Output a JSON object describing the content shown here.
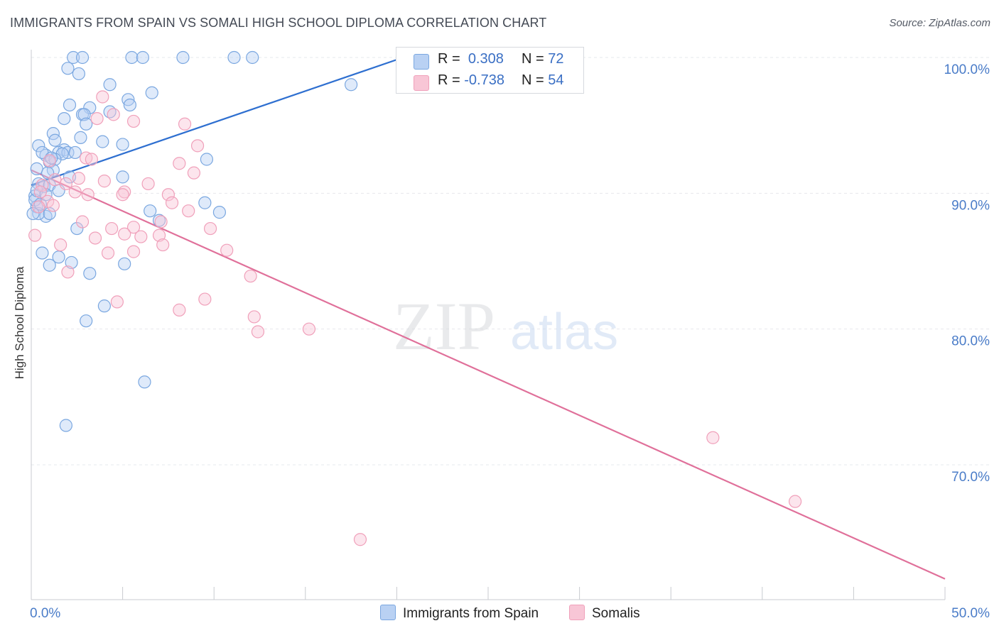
{
  "title": "IMMIGRANTS FROM SPAIN VS SOMALI HIGH SCHOOL DIPLOMA CORRELATION CHART",
  "source": "Source: ZipAtlas.com",
  "watermark": {
    "zip": "ZIP",
    "atlas": "atlas"
  },
  "colors": {
    "blue": "#7aa7e0",
    "blue_line": "#2e6fd0",
    "blue_fill": "#b9d1f3",
    "pink": "#f0a0ba",
    "pink_line": "#e0709a",
    "pink_fill": "#f8c6d6",
    "tick_text": "#4a7cc8",
    "grid": "#e6e8ec"
  },
  "legend": {
    "rows": [
      {
        "r_label": "R =",
        "r_value": "0.308",
        "n_label": "N =",
        "n_value": "72"
      },
      {
        "r_label": "R =",
        "r_value": "-0.738",
        "n_label": "N =",
        "n_value": "54"
      }
    ]
  },
  "chart_data": {
    "type": "scatter",
    "xlabel": "",
    "ylabel": "High School Diploma",
    "xlim": [
      0,
      50
    ],
    "ylim": [
      61.5,
      102
    ],
    "x_tick_labels": [
      "0.0%",
      "50.0%"
    ],
    "y_ticks": [
      70,
      80,
      90,
      100
    ],
    "y_tick_labels": [
      "70.0%",
      "80.0%",
      "90.0%",
      "100.0%"
    ],
    "grid": true,
    "legend_position": "top-center",
    "series": [
      {
        "name": "Immigrants from Spain",
        "color": "blue",
        "trend": {
          "x": [
            0,
            21
          ],
          "y": [
            90.6,
            100.3
          ]
        },
        "points": [
          [
            2.3,
            100
          ],
          [
            2.8,
            100
          ],
          [
            5.5,
            100
          ],
          [
            6.1,
            100
          ],
          [
            8.3,
            100
          ],
          [
            11.1,
            100
          ],
          [
            12.1,
            100
          ],
          [
            2.0,
            99.2
          ],
          [
            2.6,
            98.8
          ],
          [
            4.3,
            98.0
          ],
          [
            17.5,
            98.0
          ],
          [
            6.6,
            97.4
          ],
          [
            2.1,
            96.5
          ],
          [
            5.3,
            96.9
          ],
          [
            5.4,
            96.5
          ],
          [
            3.2,
            96.3
          ],
          [
            4.3,
            96.0
          ],
          [
            2.8,
            95.8
          ],
          [
            2.9,
            95.8
          ],
          [
            1.8,
            95.5
          ],
          [
            3.0,
            95.1
          ],
          [
            1.2,
            94.4
          ],
          [
            2.7,
            94.1
          ],
          [
            1.3,
            93.9
          ],
          [
            3.9,
            93.8
          ],
          [
            5.0,
            93.6
          ],
          [
            0.4,
            93.5
          ],
          [
            1.8,
            93.2
          ],
          [
            1.5,
            93.0
          ],
          [
            2.0,
            93.0
          ],
          [
            0.8,
            92.8
          ],
          [
            1.7,
            92.9
          ],
          [
            9.6,
            92.5
          ],
          [
            1.0,
            92.3
          ],
          [
            1.3,
            92.5
          ],
          [
            0.3,
            91.8
          ],
          [
            1.2,
            91.7
          ],
          [
            5.0,
            91.2
          ],
          [
            2.1,
            91.2
          ],
          [
            0.4,
            90.7
          ],
          [
            0.7,
            90.5
          ],
          [
            1.0,
            90.6
          ],
          [
            0.2,
            89.8
          ],
          [
            1.5,
            90.2
          ],
          [
            9.5,
            89.3
          ],
          [
            0.3,
            89.0
          ],
          [
            6.5,
            88.7
          ],
          [
            10.3,
            88.6
          ],
          [
            0.8,
            88.3
          ],
          [
            0.4,
            88.5
          ],
          [
            1.0,
            88.5
          ],
          [
            0.1,
            88.5
          ],
          [
            7.0,
            88.0
          ],
          [
            2.5,
            87.4
          ],
          [
            0.6,
            85.6
          ],
          [
            1.5,
            85.3
          ],
          [
            5.1,
            84.8
          ],
          [
            1.0,
            84.7
          ],
          [
            2.2,
            84.9
          ],
          [
            3.2,
            84.1
          ],
          [
            4.0,
            81.7
          ],
          [
            3.0,
            80.6
          ],
          [
            6.2,
            76.1
          ],
          [
            1.9,
            72.9
          ],
          [
            0.2,
            89.5
          ],
          [
            0.5,
            89.2
          ],
          [
            0.9,
            91.5
          ],
          [
            0.6,
            93.0
          ],
          [
            1.1,
            92.6
          ],
          [
            0.3,
            90.2
          ],
          [
            0.8,
            89.9
          ],
          [
            2.4,
            93.0
          ]
        ]
      },
      {
        "name": "Somalis",
        "color": "pink",
        "trend": {
          "x": [
            0,
            50
          ],
          "y": [
            91.7,
            61.6
          ]
        },
        "points": [
          [
            3.9,
            97.1
          ],
          [
            4.5,
            95.8
          ],
          [
            3.6,
            95.5
          ],
          [
            5.6,
            95.3
          ],
          [
            8.4,
            95.1
          ],
          [
            9.1,
            93.5
          ],
          [
            3.0,
            92.6
          ],
          [
            3.3,
            92.5
          ],
          [
            8.1,
            92.2
          ],
          [
            8.9,
            91.5
          ],
          [
            1.0,
            92.4
          ],
          [
            4.0,
            90.9
          ],
          [
            6.4,
            90.7
          ],
          [
            1.9,
            90.7
          ],
          [
            0.6,
            90.6
          ],
          [
            0.5,
            90.1
          ],
          [
            2.4,
            90.1
          ],
          [
            5.1,
            90.1
          ],
          [
            3.1,
            89.9
          ],
          [
            5.0,
            89.9
          ],
          [
            7.5,
            89.9
          ],
          [
            0.9,
            89.4
          ],
          [
            1.2,
            89.1
          ],
          [
            7.7,
            89.3
          ],
          [
            8.6,
            88.7
          ],
          [
            0.4,
            89.0
          ],
          [
            2.8,
            87.9
          ],
          [
            7.1,
            87.9
          ],
          [
            4.4,
            87.4
          ],
          [
            5.6,
            87.5
          ],
          [
            9.8,
            87.4
          ],
          [
            5.1,
            87.0
          ],
          [
            6.0,
            86.8
          ],
          [
            7.0,
            86.9
          ],
          [
            3.5,
            86.7
          ],
          [
            0.2,
            86.9
          ],
          [
            1.6,
            86.2
          ],
          [
            7.2,
            86.2
          ],
          [
            10.7,
            85.8
          ],
          [
            5.6,
            85.7
          ],
          [
            4.2,
            85.6
          ],
          [
            2.0,
            84.2
          ],
          [
            12.0,
            83.9
          ],
          [
            4.7,
            82.0
          ],
          [
            9.5,
            82.2
          ],
          [
            8.1,
            81.4
          ],
          [
            12.2,
            80.9
          ],
          [
            12.4,
            79.8
          ],
          [
            15.2,
            80.0
          ],
          [
            37.3,
            72.0
          ],
          [
            41.8,
            67.3
          ],
          [
            18.0,
            64.5
          ],
          [
            1.3,
            91.0
          ],
          [
            2.6,
            91.1
          ]
        ]
      }
    ]
  }
}
